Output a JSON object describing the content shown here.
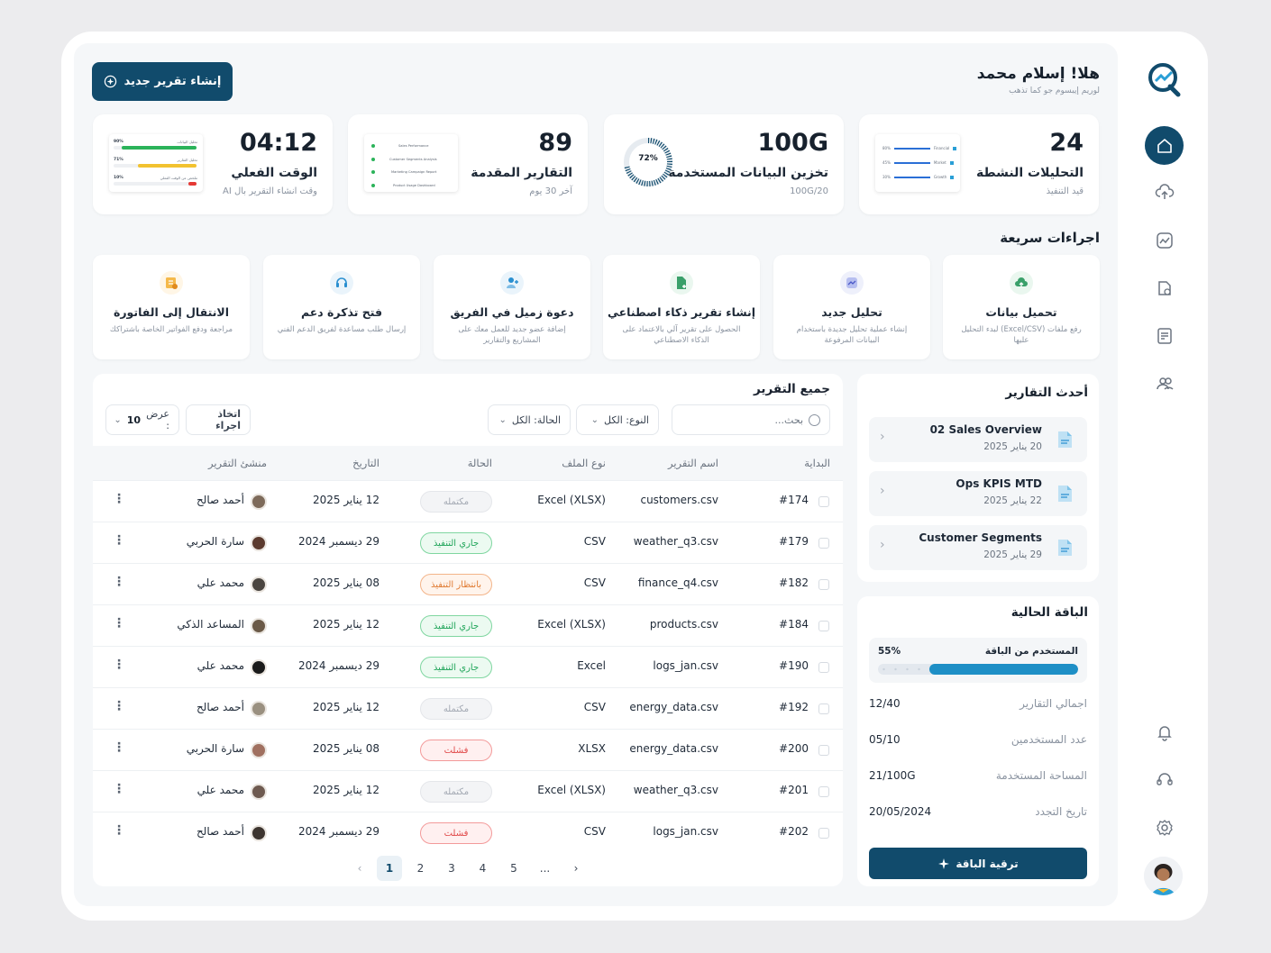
{
  "header": {
    "greeting": "هلا! إسلام محمد",
    "subtitle": "لوريم إيبسوم جو كما تذهب",
    "new_report_button": "إنشاء تقرير جديد"
  },
  "stats": [
    {
      "value": "24",
      "label": "التحليلات النشطة",
      "sub": "قيد التنفيذ"
    },
    {
      "value": "100G",
      "label": "تخزين البيانات المستخدمة",
      "sub": "100G/20",
      "gauge": "72%",
      "gauge_fraction": 0.72
    },
    {
      "value": "89",
      "label": "التقارير المقدمة",
      "sub": "آخر 30 يوم"
    },
    {
      "value": "04:12",
      "label": "الوقت الفعلي",
      "sub": "وقت انشاء التقرير بال AI"
    }
  ],
  "quick_actions": {
    "title": "اجراءات سريعة",
    "items": [
      {
        "title": "تحميل بيانات",
        "desc": "رفع ملفات (Excel/CSV) لبدء التحليل عليها",
        "icon": "cloud-upload-icon"
      },
      {
        "title": "تحليل جديد",
        "desc": "إنشاء عملية تحليل جديدة باستخدام البيانات المرفوعة",
        "icon": "chart-icon"
      },
      {
        "title": "إنشاء تقرير ذكاء اصطناعي",
        "desc": "الحصول على تقرير آلي بالاعتماد على الذكاء الاصطناعي",
        "icon": "ai-document-icon"
      },
      {
        "title": "دعوة زميل في الفريق",
        "desc": "إضافة عضو جديد للعمل معك على المشاريع والتقارير",
        "icon": "add-user-icon"
      },
      {
        "title": "فتح تذكرة دعم",
        "desc": "إرسال طلب مساعدة لفريق الدعم الفني",
        "icon": "headset-icon"
      },
      {
        "title": "الانتقال إلى الفاتورة",
        "desc": "مراجعة ودفع الفواتير الخاصة باشتراكك",
        "icon": "invoice-icon"
      }
    ]
  },
  "reports": {
    "title": "جميع التقرير",
    "search_placeholder": "بحث...",
    "filter_type": "النوع: الكل",
    "filter_status": "الحالة: الكل",
    "action_button": "اتخاذ اجراء",
    "show_label": "عرض :",
    "show_value": "10",
    "columns": [
      "البداية",
      "اسم التقرير",
      "نوع الملف",
      "الحالة",
      "التاريخ",
      "منشئ التقرير"
    ],
    "rows": [
      {
        "id": "#174",
        "name": "customers.csv",
        "type": "Excel (XLSX)",
        "status": "مكتمله",
        "status_kind": "done",
        "date": "12 يناير 2025",
        "creator": "أحمد صالح",
        "avatar_color": "#7d6a5a"
      },
      {
        "id": "#179",
        "name": "weather_q3.csv",
        "type": "CSV",
        "status": "جاري التنفيذ",
        "status_kind": "run",
        "date": "29 ديسمبر 2024",
        "creator": "سارة الحربي",
        "avatar_color": "#5b3a2e"
      },
      {
        "id": "#182",
        "name": "finance_q4.csv",
        "type": "CSV",
        "status": "بانتظار التنفيذ",
        "status_kind": "wait",
        "date": "08 يناير 2025",
        "creator": "محمد علي",
        "avatar_color": "#4a4540"
      },
      {
        "id": "#184",
        "name": "products.csv",
        "type": "Excel (XLSX)",
        "status": "جاري التنفيذ",
        "status_kind": "run",
        "date": "12 يناير 2025",
        "creator": "المساعد الذكي",
        "avatar_color": "#6b5a48"
      },
      {
        "id": "#190",
        "name": "logs_jan.csv",
        "type": "Excel",
        "status": "جاري التنفيذ",
        "status_kind": "run",
        "date": "29 ديسمبر 2024",
        "creator": "محمد علي",
        "avatar_color": "#1a1a1a"
      },
      {
        "id": "#192",
        "name": "energy_data.csv",
        "type": "CSV",
        "status": "مكتمله",
        "status_kind": "done",
        "date": "12 يناير 2025",
        "creator": "أحمد صالح",
        "avatar_color": "#9a9080"
      },
      {
        "id": "#200",
        "name": "energy_data.csv",
        "type": "XLSX",
        "status": "فشلت",
        "status_kind": "fail",
        "date": "08 يناير 2025",
        "creator": "سارة الحربي",
        "avatar_color": "#a07060"
      },
      {
        "id": "#201",
        "name": "weather_q3.csv",
        "type": "Excel (XLSX)",
        "status": "مكتمله",
        "status_kind": "done",
        "date": "12 يناير 2025",
        "creator": "محمد علي",
        "avatar_color": "#6e5a50"
      },
      {
        "id": "#202",
        "name": "logs_jan.csv",
        "type": "CSV",
        "status": "فشلت",
        "status_kind": "fail",
        "date": "29 ديسمبر 2024",
        "creator": "أحمد صالح",
        "avatar_color": "#3d3530"
      }
    ],
    "pagination": [
      "1",
      "2",
      "3",
      "4",
      "5",
      "..."
    ],
    "current_page": "1"
  },
  "recent": {
    "title": "أحدث التقارير",
    "items": [
      {
        "name": "02 Sales Overview",
        "date": "20 يناير 2025"
      },
      {
        "name": "Ops KPIS MTD",
        "date": "22 يناير 2025"
      },
      {
        "name": "Customer Segments",
        "date": "29 يناير 2025"
      }
    ]
  },
  "plan": {
    "title": "الباقة الحالية",
    "usage_label": "المستخدم من الباقة",
    "usage_value": "55%",
    "usage_fraction": 0.55,
    "rows": [
      {
        "key": "اجمالي التقارير",
        "value": "12/40"
      },
      {
        "key": "عدد المستخدمين",
        "value": "05/10"
      },
      {
        "key": "المساحة المستخدمة",
        "value": "21/100G"
      },
      {
        "key": "تاريخ التجدد",
        "value": "20/05/2024"
      }
    ],
    "upgrade_button": "ترقية الباقة"
  },
  "thumb_bars": {
    "time": [
      {
        "pct": "90%",
        "label": "تحليل البيانات",
        "fill": 0.9,
        "color": "#2bb35a"
      },
      {
        "pct": "71%",
        "label": "تحليل التقارير",
        "fill": 0.71,
        "color": "#f2c230"
      },
      {
        "pct": "10%",
        "label": "ملخص عن الوقت الفعلي",
        "fill": 0.1,
        "color": "#e53935"
      }
    ],
    "submitted": [
      "Sales Performance",
      "Customer Segments Analysis",
      "Marketing Campaign Report",
      "Product Usage Dashboard"
    ],
    "active": [
      {
        "pct": "80%",
        "label": "Financial"
      },
      {
        "pct": "45%",
        "label": "Market"
      },
      {
        "pct": "30%",
        "label": "Growth"
      }
    ]
  },
  "colors": {
    "primary": "#114b6c",
    "accent": "#1e8fc6",
    "success": "#20a55a",
    "warning": "#e07b32",
    "danger": "#e04848"
  }
}
